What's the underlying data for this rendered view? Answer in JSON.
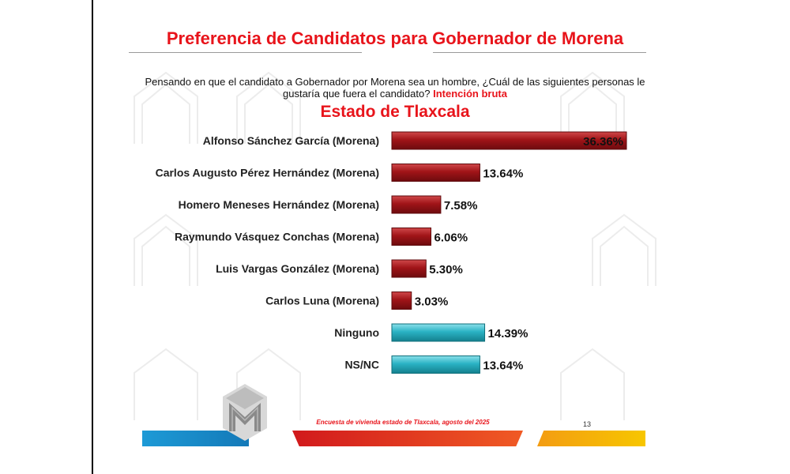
{
  "header": {
    "title": "Preferencia de Candidatos para Gobernador de Morena",
    "question": "Pensando en que el candidato a Gobernador por Morena sea un hombre, ¿Cuál de las siguientes personas le gustaría que fuera el candidato?",
    "question_highlight": "Intención bruta",
    "subtitle": "Estado de Tlaxcala"
  },
  "chart_data": {
    "type": "bar",
    "orientation": "horizontal",
    "categories": [
      "Alfonso Sánchez García (Morena)",
      "Carlos Augusto Pérez Hernández (Morena)",
      "Homero Meneses Hernández (Morena)",
      "Raymundo Vásquez Conchas (Morena)",
      "Luis Vargas González (Morena)",
      "Carlos Luna (Morena)",
      "Ninguno",
      "NS/NC"
    ],
    "values": [
      36.36,
      13.64,
      7.58,
      6.06,
      5.3,
      3.03,
      14.39,
      13.64
    ],
    "value_labels": [
      "36.36%",
      "13.64%",
      "7.58%",
      "6.06%",
      "5.30%",
      "3.03%",
      "14.39%",
      "13.64%"
    ],
    "colors": [
      "#a01418",
      "#a01418",
      "#a01418",
      "#a01418",
      "#a01418",
      "#a01418",
      "#2ab3c4",
      "#2ab3c4"
    ],
    "xlim": [
      0,
      36.36
    ],
    "grid": false,
    "legend": "none"
  },
  "footer": {
    "survey": "Encuesta de vivienda estado de Tlaxcala, agosto del 2025",
    "page_number": "13"
  },
  "brand": {
    "logo_icon": "m-logo-icon",
    "accent_red": "#e8141b",
    "accent_blue": "#1d9ad6",
    "accent_yellow": "#f7c600"
  }
}
